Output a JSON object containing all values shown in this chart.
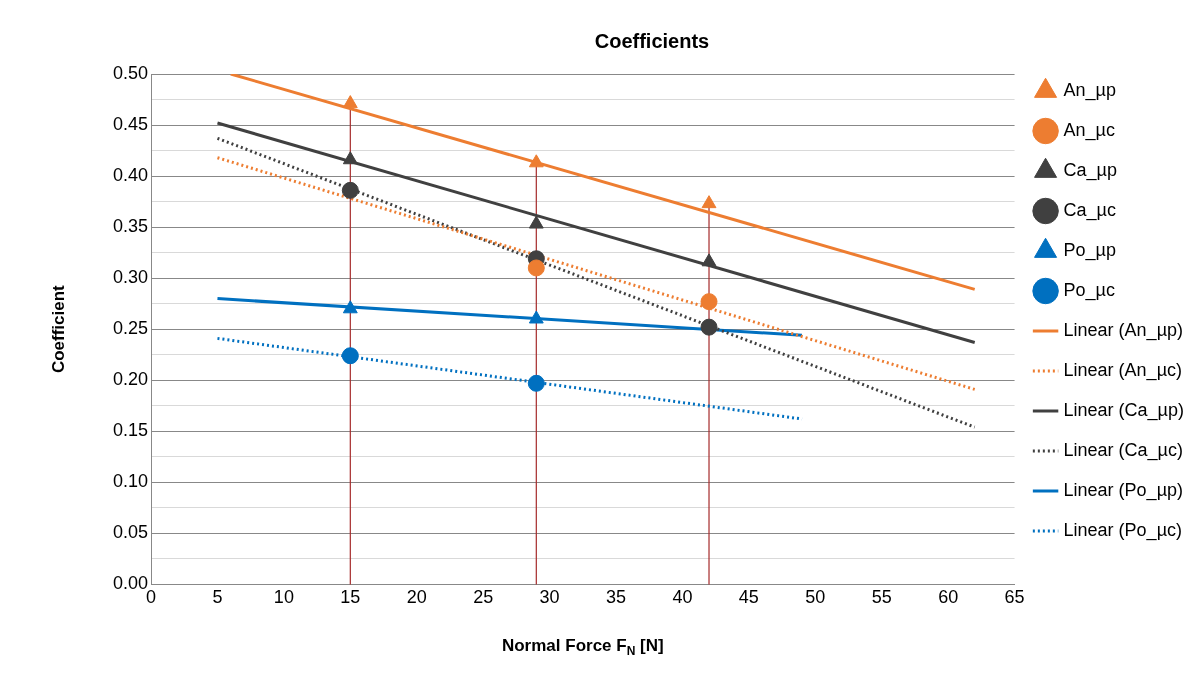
{
  "chart_data": {
    "type": "scatter",
    "title": "Coefficients",
    "xlabel": "Normal Force F$_{N}$ [N]",
    "ylabel": "Coefficient",
    "xlim": [
      0,
      65
    ],
    "xticks": [
      0,
      5,
      10,
      15,
      20,
      25,
      30,
      35,
      40,
      45,
      50,
      55,
      60,
      65
    ],
    "ylim": [
      0,
      0.5
    ],
    "yticks": [
      {
        "value": 0,
        "label": "0.00"
      },
      {
        "value": 0.025,
        "label": null
      },
      {
        "value": 0.05,
        "label": "0.05"
      },
      {
        "value": 0.075,
        "label": null
      },
      {
        "value": 0.1,
        "label": "0.10"
      },
      {
        "value": 0.125,
        "label": null
      },
      {
        "value": 0.15,
        "label": "0.15"
      },
      {
        "value": 0.175,
        "label": null
      },
      {
        "value": 0.2,
        "label": "0.20"
      },
      {
        "value": 0.225,
        "label": null
      },
      {
        "value": 0.25,
        "label": "0.25"
      },
      {
        "value": 0.275,
        "label": null
      },
      {
        "value": 0.3,
        "label": "0.30"
      },
      {
        "value": 0.325,
        "label": null
      },
      {
        "value": 0.35,
        "label": "0.35"
      },
      {
        "value": 0.375,
        "label": null
      },
      {
        "value": 0.4,
        "label": "0.40"
      },
      {
        "value": 0.425,
        "label": null
      },
      {
        "value": 0.45,
        "label": "0.45"
      },
      {
        "value": 0.475,
        "label": null
      },
      {
        "value": 0.5,
        "label": "0.50"
      }
    ],
    "grid": "y",
    "legend": "right",
    "ref_lines": [
      {
        "axis": "x",
        "value": 15,
        "color": "#a52a2a"
      },
      {
        "axis": "x",
        "value": 29,
        "color": "#a52a2a"
      },
      {
        "axis": "x",
        "value": 42,
        "color": "#a52a2a"
      }
    ],
    "series": [
      {
        "name": "An_µp",
        "type": "scatter",
        "marker": "triangle",
        "color": "#ed7d31",
        "x": [
          15,
          29,
          42
        ],
        "values": [
          0.471,
          0.413,
          0.373
        ]
      },
      {
        "name": "An_µc",
        "type": "scatter",
        "marker": "circle",
        "color": "#ed7d31",
        "x": [
          29,
          42
        ],
        "values": [
          0.31,
          0.277
        ]
      },
      {
        "name": "Ca_µp",
        "type": "scatter",
        "marker": "triangle",
        "color": "#404040",
        "x": [
          15,
          29,
          42
        ],
        "values": [
          0.416,
          0.353,
          0.316
        ]
      },
      {
        "name": "Ca_µc",
        "type": "scatter",
        "marker": "circle",
        "color": "#404040",
        "x": [
          15,
          29,
          42
        ],
        "values": [
          0.386,
          0.319,
          0.252
        ]
      },
      {
        "name": "Po_µp",
        "type": "scatter",
        "marker": "triangle",
        "color": "#0070c0",
        "x": [
          15,
          29
        ],
        "values": [
          0.27,
          0.26
        ]
      },
      {
        "name": "Po_µc",
        "type": "scatter",
        "marker": "circle",
        "color": "#0070c0",
        "x": [
          15,
          29
        ],
        "values": [
          0.224,
          0.197
        ]
      },
      {
        "name": "Linear (An_µp)",
        "type": "line",
        "line_style": "solid",
        "color": "#ed7d31",
        "x": [
          6,
          62
        ],
        "values": [
          0.5,
          0.289
        ]
      },
      {
        "name": "Linear (An_µc)",
        "type": "line",
        "line_style": "dotted",
        "color": "#ed7d31",
        "x": [
          5,
          62
        ],
        "values": [
          0.418,
          0.191
        ]
      },
      {
        "name": "Linear (Ca_µp)",
        "type": "line",
        "line_style": "solid",
        "color": "#404040",
        "x": [
          5,
          62
        ],
        "values": [
          0.452,
          0.237
        ]
      },
      {
        "name": "Linear (Ca_µc)",
        "type": "line",
        "line_style": "dotted",
        "color": "#404040",
        "x": [
          5,
          62
        ],
        "values": [
          0.437,
          0.154
        ]
      },
      {
        "name": "Linear (Po_µp)",
        "type": "line",
        "line_style": "solid",
        "color": "#0070c0",
        "x": [
          5,
          49
        ],
        "values": [
          0.28,
          0.244
        ]
      },
      {
        "name": "Linear (Po_µc)",
        "type": "line",
        "line_style": "dotted",
        "color": "#0070c0",
        "x": [
          5,
          49
        ],
        "values": [
          0.241,
          0.162
        ]
      }
    ]
  }
}
